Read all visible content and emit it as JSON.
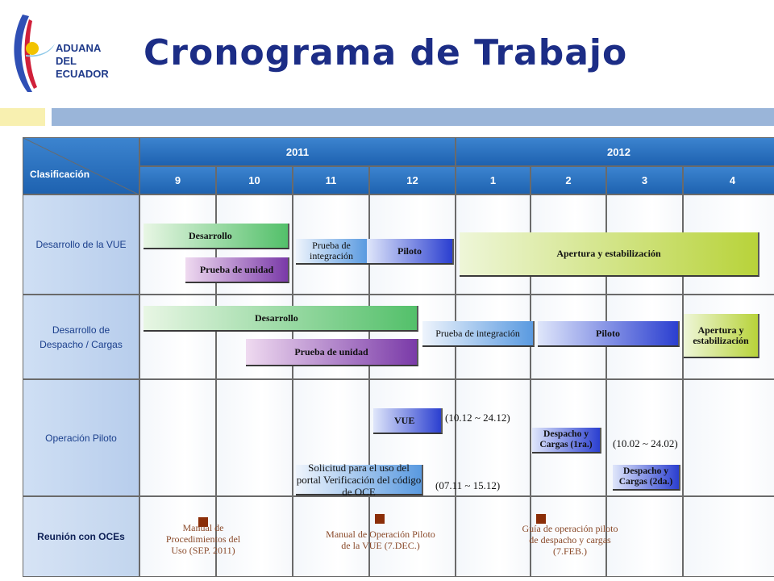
{
  "header": {
    "logo_text": [
      "ADUANA",
      "DEL",
      "ECUADOR"
    ],
    "title": "Cronograma de Trabajo"
  },
  "table": {
    "corner_label": "Clasificación",
    "years": [
      "2011",
      "2012"
    ],
    "months": [
      "9",
      "10",
      "11",
      "12",
      "1",
      "2",
      "3",
      "4"
    ],
    "rows": [
      "Desarrollo de la VUE",
      "Desarrollo de Despacho / Cargas",
      "Operación Piloto",
      "Reunión con OCEs"
    ]
  },
  "bars": {
    "vue_desarrollo": "Desarrollo",
    "vue_prueba_unidad": "Prueba de unidad",
    "vue_prueba_integracion": "Prueba de integración",
    "vue_piloto": "Piloto",
    "vue_apertura": "Apertura y estabilización",
    "dc_desarrollo": "Desarrollo",
    "dc_prueba_unidad": "Prueba de unidad",
    "dc_prueba_integracion": "Prueba de integración",
    "dc_piloto": "Piloto",
    "dc_apertura": "Apertura y estabilización",
    "op_vue": "VUE",
    "op_solicitud": "Solicitud para el uso del portal Verificación del código de OCE",
    "op_despacho_1ra": "Despacho y Cargas (1ra.)",
    "op_despacho_2da": "Despacho y Cargas (2da.)"
  },
  "notes": {
    "vue_range": "(10.12 ~ 24.12)",
    "solicitud_range": "(07.11 ~ 15.12)",
    "despacho_1ra_range": "(10.02 ~ 24.02)"
  },
  "meetings": [
    "Manual de Procedimientos del Uso (SEP. 2011)",
    "Manual de Operación Piloto de la VUE (7.DEC.)",
    "Guía de operación piloto de despacho y cargas (7.FEB.)"
  ],
  "colors": {
    "title": "#1c2d86",
    "header_blue": "#1e62b0",
    "meeting_marker": "#8b2e08"
  }
}
